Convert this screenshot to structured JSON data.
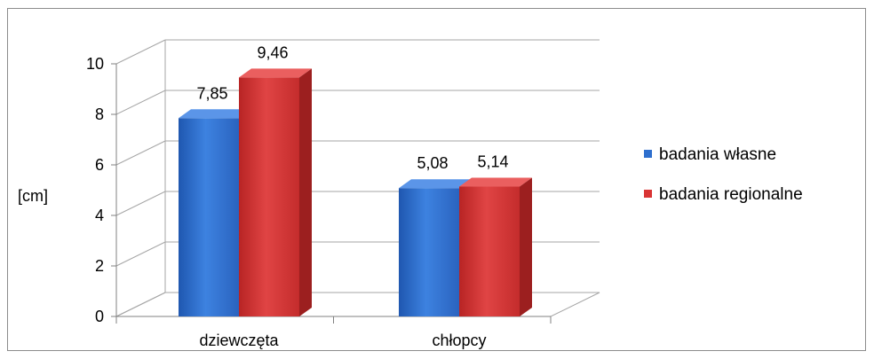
{
  "chart_data": {
    "type": "bar",
    "three_d": true,
    "categories": [
      "dziewczęta",
      "chłopcy"
    ],
    "series": [
      {
        "name": "badania własne",
        "values": [
          7.85,
          5.08
        ],
        "labels": [
          "7,85",
          "5,08"
        ],
        "color": "#2e6fce"
      },
      {
        "name": "badania regionalne",
        "values": [
          9.46,
          5.14
        ],
        "labels": [
          "9,46",
          "5,14"
        ],
        "color": "#d93434"
      }
    ],
    "ylabel": "[cm]",
    "ylim": [
      0,
      10
    ],
    "yticks": [
      0,
      2,
      4,
      6,
      8,
      10
    ],
    "ytick_labels": [
      "0",
      "2",
      "4",
      "6",
      "8",
      "10"
    ],
    "grid": true,
    "legend_position": "right"
  }
}
